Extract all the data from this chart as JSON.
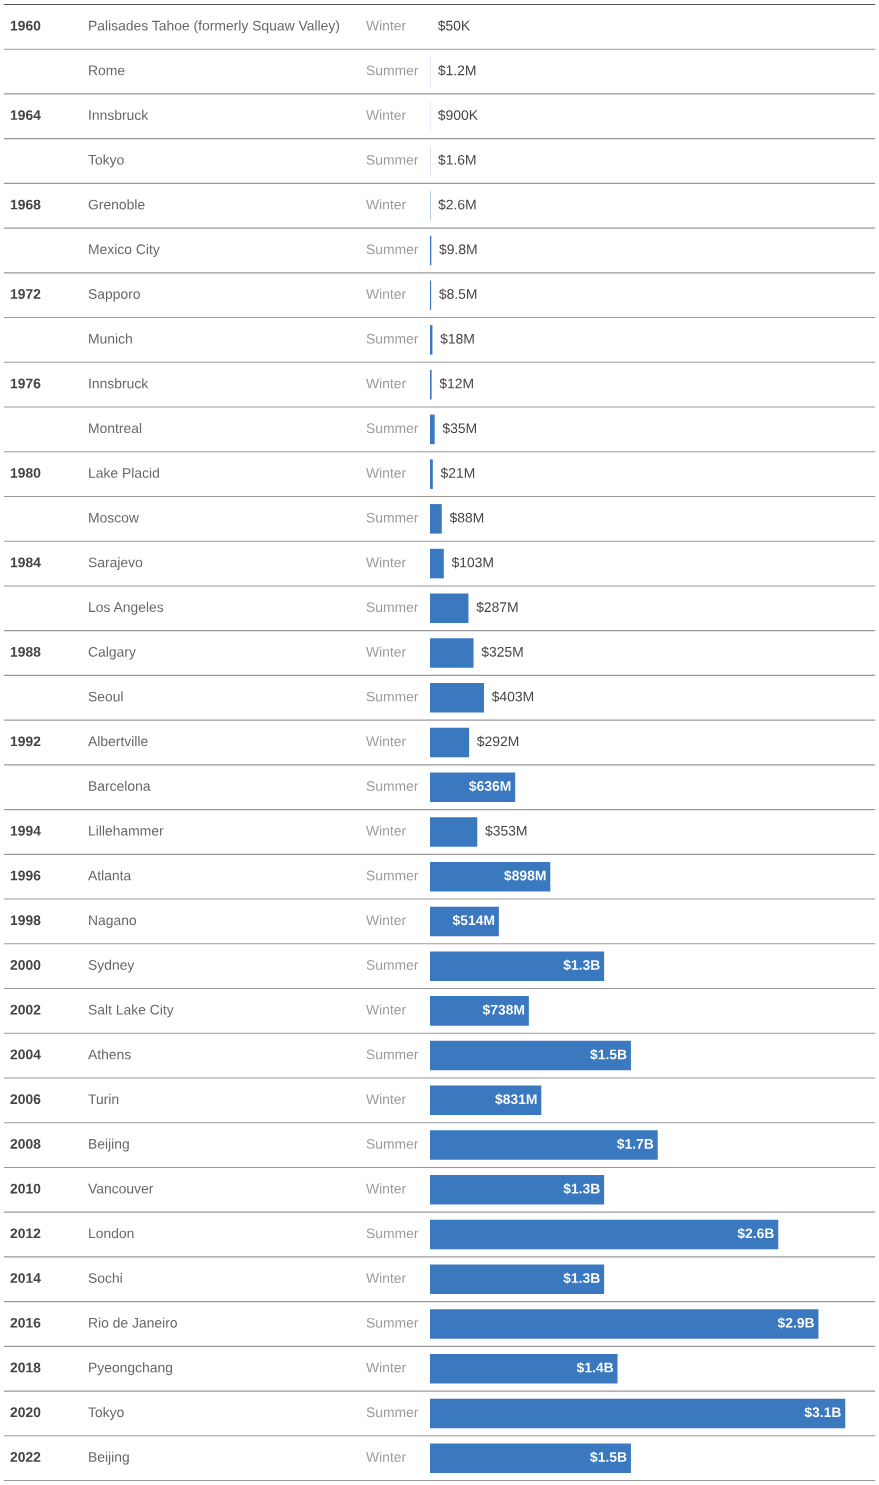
{
  "chart_data": {
    "type": "bar",
    "orientation": "horizontal",
    "tick_labels": false,
    "grid": true,
    "color": "#3a78c0",
    "categories": [
      "Palisades Tahoe (formerly Squaw Valley)",
      "Rome",
      "Innsbruck",
      "Tokyo",
      "Grenoble",
      "Mexico City",
      "Sapporo",
      "Munich",
      "Innsbruck",
      "Montreal",
      "Lake Placid",
      "Moscow",
      "Sarajevo",
      "Los Angeles",
      "Calgary",
      "Seoul",
      "Albertville",
      "Barcelona",
      "Lillehammer",
      "Atlanta",
      "Nagano",
      "Sydney",
      "Salt Lake City",
      "Athens",
      "Turin",
      "Beijing",
      "Vancouver",
      "London",
      "Sochi",
      "Rio de Janeiro",
      "Pyeongchang",
      "Tokyo",
      "Beijing"
    ],
    "y_categories": [
      "1960",
      null,
      "1964",
      null,
      "1968",
      null,
      "1972",
      null,
      "1976",
      null,
      "1980",
      null,
      "1984",
      null,
      "1988",
      null,
      "1992",
      null,
      "1994",
      "1996",
      "1998",
      "2000",
      "2002",
      "2004",
      "2006",
      "2008",
      "2010",
      "2012",
      "2014",
      "2016",
      "2018",
      "2020",
      "2022"
    ],
    "y2_categories": [
      "Winter",
      "Summer",
      "Winter",
      "Summer",
      "Winter",
      "Summer",
      "Winter",
      "Summer",
      "Winter",
      "Summer",
      "Winter",
      "Summer",
      "Winter",
      "Summer",
      "Winter",
      "Summer",
      "Winter",
      "Summer",
      "Winter",
      "Summer",
      "Winter",
      "Summer",
      "Winter",
      "Summer",
      "Winter",
      "Summer",
      "Winter",
      "Summer",
      "Winter",
      "Summer",
      "Winter",
      "Summer",
      "Winter"
    ],
    "values": [
      50000,
      1200000,
      900000,
      1600000,
      2600000,
      9800000,
      8500000,
      18000000,
      12000000,
      35000000,
      21000000,
      88000000,
      103000000,
      287000000,
      325000000,
      403000000,
      292000000,
      636000000,
      353000000,
      898000000,
      514000000,
      1300000000,
      738000000,
      1500000000,
      831000000,
      1700000000,
      1300000000,
      2600000000,
      1300000000,
      2900000000,
      1400000000,
      3100000000,
      1500000000
    ],
    "value_labels": [
      "$50K",
      "$1.2M",
      "$900K",
      "$1.6M",
      "$2.6M",
      "$9.8M",
      "$8.5M",
      "$18M",
      "$12M",
      "$35M",
      "$21M",
      "$88M",
      "$103M",
      "$287M",
      "$325M",
      "$403M",
      "$292M",
      "$636M",
      "$353M",
      "$898M",
      "$514M",
      "$1.3B",
      "$738M",
      "$1.5B",
      "$831M",
      "$1.7B",
      "$1.3B",
      "$2.6B",
      "$1.3B",
      "$2.9B",
      "$1.4B",
      "$3.1B",
      "$1.5B"
    ]
  }
}
